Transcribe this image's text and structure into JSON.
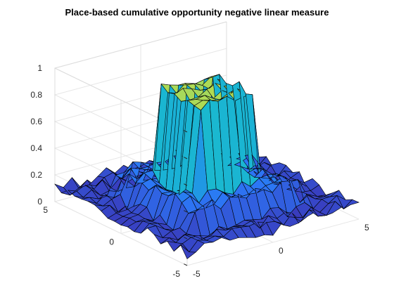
{
  "chart_data": {
    "type": "surface",
    "title": "Place-based cumulative opportunity negative linear measure",
    "xlabel": "",
    "ylabel": "",
    "zlabel": "",
    "xlim": [
      -5,
      5
    ],
    "ylim": [
      -5,
      5
    ],
    "zlim": [
      0,
      1
    ],
    "x_ticks": [
      -5,
      0,
      5
    ],
    "y_ticks": [
      -5,
      0,
      5
    ],
    "z_ticks": [
      0,
      0.2,
      0.4,
      0.6,
      0.8,
      1
    ],
    "x_tick_labels": [
      "-5",
      "0",
      "5"
    ],
    "y_tick_labels": [
      "-5",
      "0",
      "5"
    ],
    "z_tick_labels": [
      "0",
      "0.2",
      "0.4",
      "0.6",
      "0.8",
      "1"
    ],
    "grid": true,
    "colormap": "parula",
    "colors": {
      "low": "#3e26a8",
      "mid": "#2c76f5",
      "teal": "#1ac7c2",
      "high": "#f9e41e"
    },
    "grid_size": 21,
    "surface_description": {
      "plateau_height": 0.9,
      "plateau_half_width": 1.5,
      "ring_height": 0.25,
      "ring_extent": 3,
      "base_height": 0.1
    }
  }
}
